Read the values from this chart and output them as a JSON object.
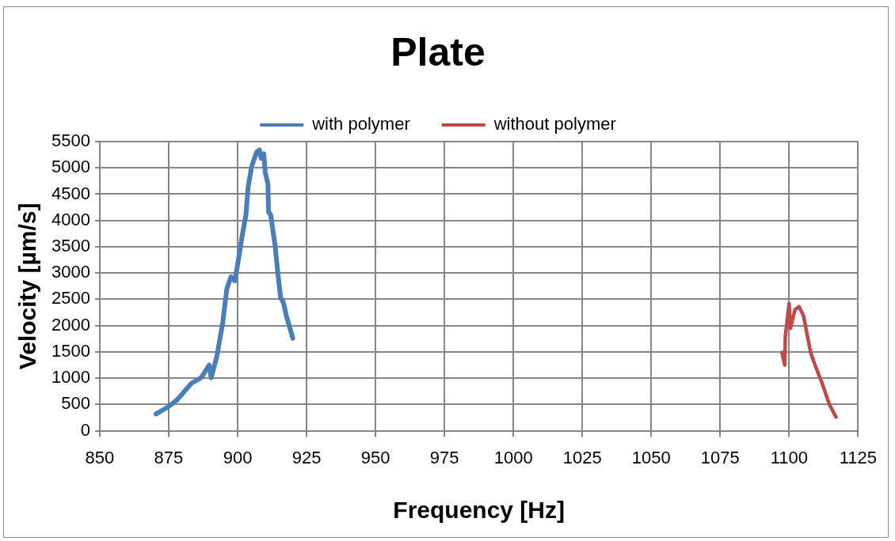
{
  "chart_data": {
    "type": "line",
    "title": "Plate",
    "xlabel": "Frequency [Hz]",
    "ylabel": "Velocity [µm/s]",
    "xlim": [
      850,
      1125
    ],
    "xticks": [
      850,
      875,
      900,
      925,
      950,
      975,
      1000,
      1025,
      1050,
      1075,
      1100,
      1125
    ],
    "ylim": [
      0,
      5500
    ],
    "yticks": [
      0,
      500,
      1000,
      1500,
      2000,
      2500,
      3000,
      3500,
      4000,
      4500,
      5000,
      5500
    ],
    "grid": true,
    "legend": "top",
    "marker": "none",
    "line_style": "solid",
    "series": [
      {
        "name": "with polymer",
        "color": "#4a7ebb",
        "x": [
          870.4,
          875,
          878.1,
          883.2,
          886.8,
          889.7,
          890.4,
          892.5,
          894.6,
          896.1,
          897.6,
          899.0,
          900.2,
          901.8,
          903.0,
          903.8,
          905.1,
          906.9,
          907.9,
          908.5,
          909.5,
          910.0,
          911.0,
          911.2,
          912.0,
          913.6,
          914.6,
          915.6,
          916.6,
          917.7,
          918.7,
          920.0
        ],
        "values": [
          320,
          460,
          590,
          900,
          1010,
          1250,
          1010,
          1420,
          2060,
          2700,
          2930,
          2850,
          3230,
          3750,
          4100,
          4630,
          5030,
          5300,
          5340,
          5180,
          5270,
          4920,
          4690,
          4160,
          4100,
          3520,
          2990,
          2530,
          2440,
          2180,
          2000,
          1760
        ]
      },
      {
        "name": "without polymer",
        "color": "#be4b48",
        "x": [
          1097.4,
          1098.4,
          1098.6,
          1100.0,
          1100.5,
          1102.1,
          1103.6,
          1105.2,
          1107.8,
          1109.4,
          1112.0,
          1114.6,
          1117.0
        ],
        "values": [
          1490,
          1250,
          1780,
          2420,
          1950,
          2300,
          2360,
          2190,
          1490,
          1250,
          900,
          500,
          260
        ]
      }
    ]
  }
}
